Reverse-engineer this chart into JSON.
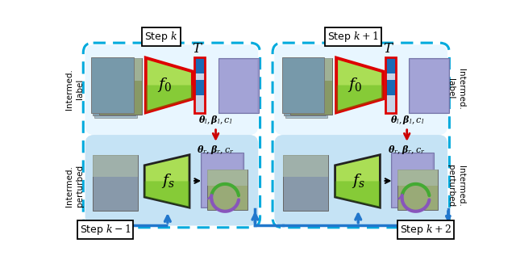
{
  "bg_color": "#ffffff",
  "step_k_label": "Step $k$",
  "step_k1_label": "Step $k+1$",
  "step_km1_label": "Step $k - 1$",
  "step_k2_label": "Step $k+2$",
  "T_label": "$T$",
  "f0_label": "$f_0$",
  "fs_label": "$f_s$",
  "theta_l_label": "$\\boldsymbol{\\theta}_l, \\boldsymbol{\\beta}_l, c_l$",
  "theta_r_label": "$\\boldsymbol{\\theta}_r, \\boldsymbol{\\beta}_r, c_r$",
  "intermed_label_text": "Intermed.\nlabel",
  "intermed_perturbed_text": "Intermed.\nperturbed",
  "dashed_box_color": "#00aadd",
  "top_box_color": "#e8f6ff",
  "bottom_box_color": "#c5e3f5",
  "funnel_green_dark": "#44aa00",
  "funnel_green_light": "#aade55",
  "funnel_outline_red": "#dd0000",
  "funnel_fs_dark": "#44aa00",
  "funnel_fs_light": "#aade55",
  "arrow_red": "#cc0000",
  "arrow_blue": "#2277cc",
  "feature_blue1": "#1a6bb5",
  "feature_blue2": "#3388cc",
  "feature_gray": "#c0c8d8",
  "feature_white": "#e8eef5",
  "person_green": "#88aa66",
  "person_blue": "#9999cc",
  "person_blue2": "#aaaadd",
  "circ_purple": "#8855bb",
  "circ_green": "#44aa33"
}
